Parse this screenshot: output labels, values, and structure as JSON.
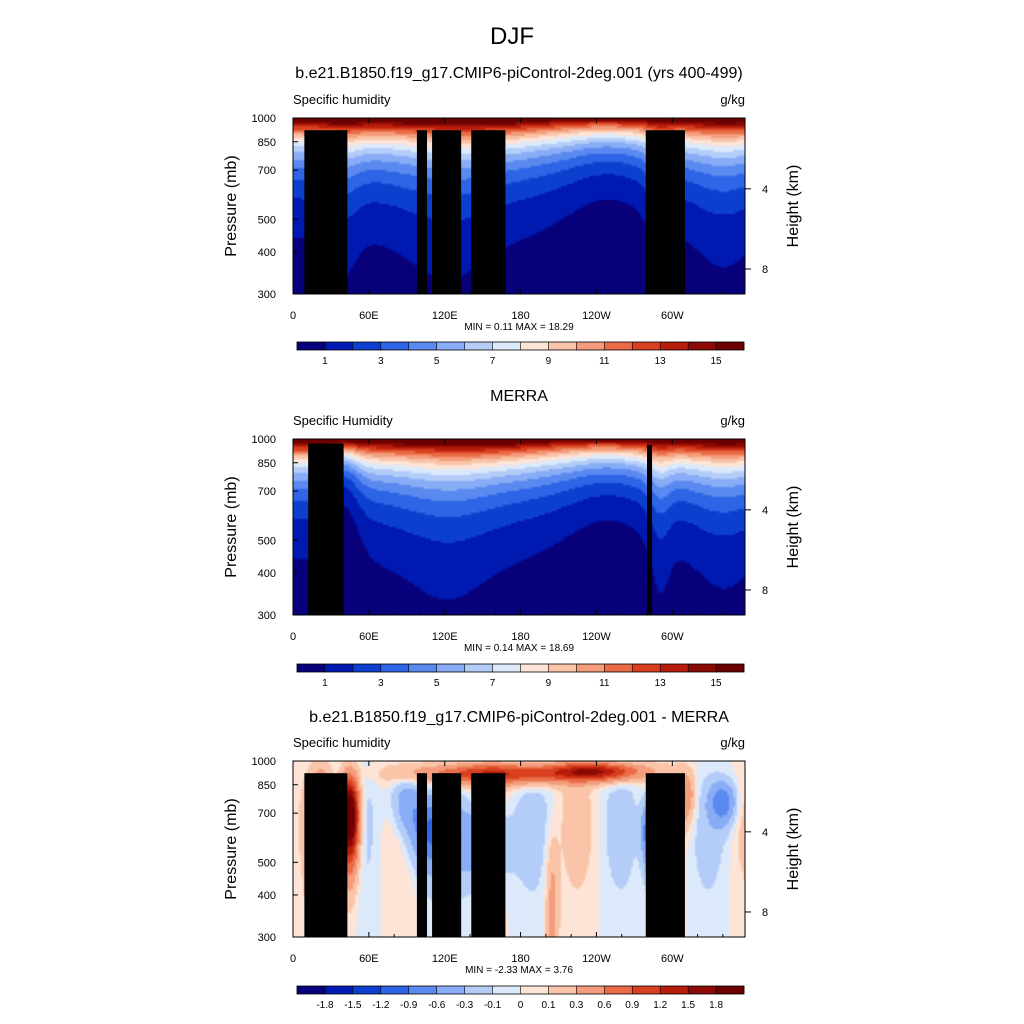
{
  "figure": {
    "title": "DJF"
  },
  "chart_data": [
    {
      "type": "heatmap",
      "title": "b.e21.B1850.f19_g17.CMIP6-piControl-2deg.001 (yrs 400-499)",
      "left_label": "Specific humidity",
      "right_label": "g/kg",
      "ylabel": "Pressure (mb)",
      "ylabel_right": "Height (km)",
      "x_ticks": [
        "0",
        "60E",
        "120E",
        "180",
        "120W",
        "60W"
      ],
      "x_range_deg_east": [
        0,
        357.5
      ],
      "y_ticks": [
        "300",
        "400",
        "500",
        "700",
        "850",
        "1000"
      ],
      "y_range": [
        1000,
        300
      ],
      "y_scale": "log",
      "height_ticks": [
        "8",
        "4"
      ],
      "stats": "MIN =   0.11  MAX =  18.29",
      "colorbar_labels": [
        "1",
        "3",
        "5",
        "7",
        "9",
        "11",
        "13",
        "15"
      ],
      "colors": [
        "#08007a",
        "#0019b0",
        "#0d3fcf",
        "#2e64e6",
        "#5a8af0",
        "#88acf5",
        "#b4cdf8",
        "#dce9fb",
        "#fde4d6",
        "#f9c4a8",
        "#f39d7c",
        "#ea6c47",
        "#d8401f",
        "#b81d0c",
        "#8c0a04",
        "#6b0000"
      ]
    },
    {
      "type": "heatmap",
      "title": "MERRA",
      "left_label": "Specific Humidity",
      "right_label": "g/kg",
      "ylabel": "Pressure (mb)",
      "ylabel_right": "Height (km)",
      "x_ticks": [
        "0",
        "60E",
        "120E",
        "180",
        "120W",
        "60W"
      ],
      "x_range_deg_east": [
        0,
        357.5
      ],
      "y_ticks": [
        "300",
        "400",
        "500",
        "700",
        "850",
        "1000"
      ],
      "y_range": [
        1000,
        300
      ],
      "y_scale": "log",
      "height_ticks": [
        "8",
        "4"
      ],
      "stats": "MIN =   0.14  MAX =  18.69",
      "colorbar_labels": [
        "1",
        "3",
        "5",
        "7",
        "9",
        "11",
        "13",
        "15"
      ],
      "colors": [
        "#08007a",
        "#0019b0",
        "#0d3fcf",
        "#2e64e6",
        "#5a8af0",
        "#88acf5",
        "#b4cdf8",
        "#dce9fb",
        "#fde4d6",
        "#f9c4a8",
        "#f39d7c",
        "#ea6c47",
        "#d8401f",
        "#b81d0c",
        "#8c0a04",
        "#6b0000"
      ]
    },
    {
      "type": "heatmap",
      "title": "b.e21.B1850.f19_g17.CMIP6-piControl-2deg.001 - MERRA",
      "left_label": "Specific humidity",
      "right_label": "g/kg",
      "ylabel": "Pressure (mb)",
      "ylabel_right": "Height (km)",
      "x_ticks": [
        "0",
        "60E",
        "120E",
        "180",
        "120W",
        "60W"
      ],
      "x_range_deg_east": [
        0,
        357.5
      ],
      "y_ticks": [
        "300",
        "400",
        "500",
        "700",
        "850",
        "1000"
      ],
      "y_range": [
        1000,
        300
      ],
      "y_scale": "log",
      "height_ticks": [
        "8",
        "4"
      ],
      "stats": "MIN =  -2.33  MAX =   3.76",
      "colorbar_labels": [
        "-1.8",
        "-1.5",
        "-1.2",
        "-0.9",
        "-0.6",
        "-0.3",
        "-0.1",
        "0",
        "0.1",
        "0.3",
        "0.6",
        "0.9",
        "1.2",
        "1.5",
        "1.8"
      ],
      "colors": [
        "#08007a",
        "#0019b0",
        "#0d3fcf",
        "#2e64e6",
        "#5a8af0",
        "#88acf5",
        "#b4cdf8",
        "#dce9fb",
        "#fde4d6",
        "#f9c4a8",
        "#f39d7c",
        "#ea6c47",
        "#d8401f",
        "#b81d0c",
        "#8c0a04",
        "#6b0000"
      ]
    }
  ]
}
